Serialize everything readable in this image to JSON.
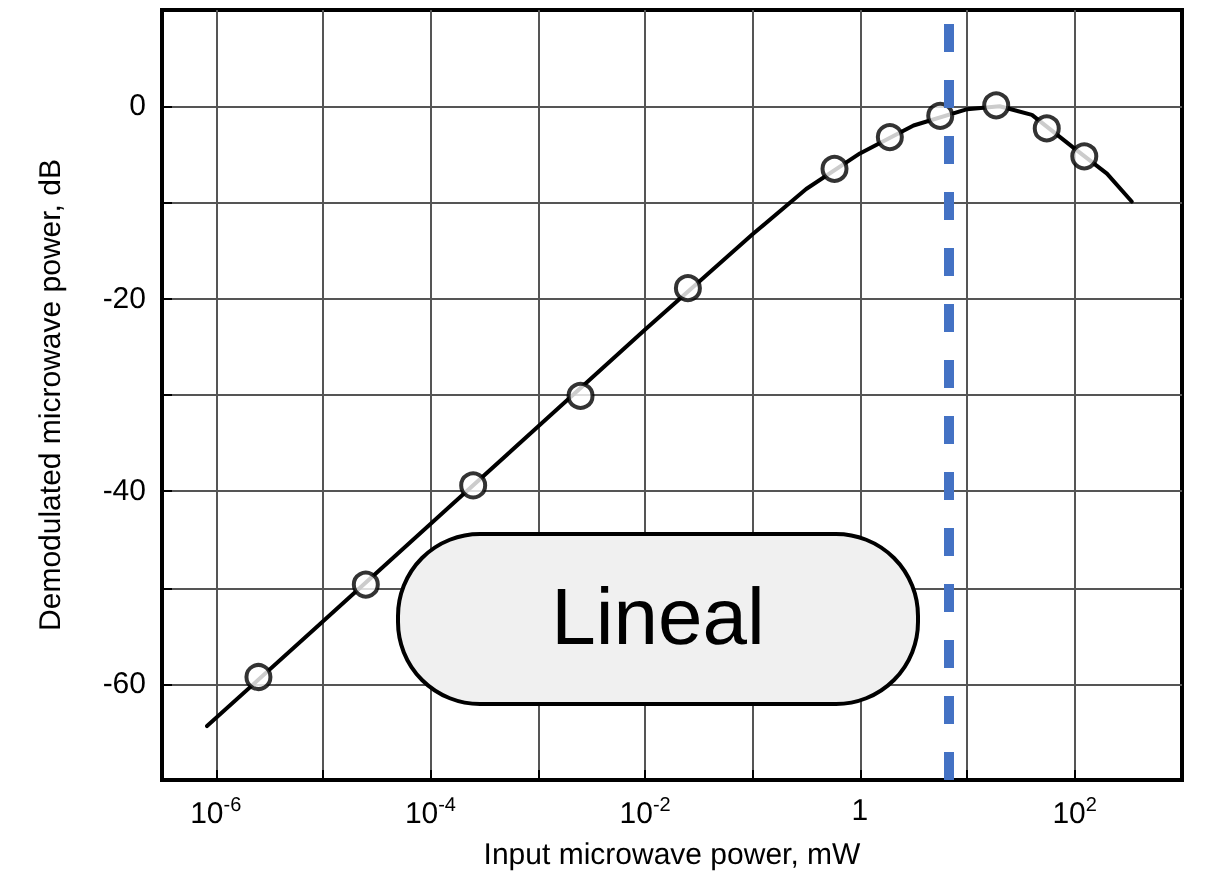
{
  "chart_data": {
    "type": "scatter",
    "xlabel": "Input microwave power, mW",
    "ylabel": "Demodulated microwave power, dB",
    "log": "x",
    "grid": true,
    "xlim": [
      3.16e-07,
      1000
    ],
    "ylim": [
      -70,
      10
    ],
    "xticks": [
      {
        "value": 1e-06,
        "label": "10$^{-6}$"
      },
      {
        "value": 1e-05,
        "label": null
      },
      {
        "value": 0.0001,
        "label": "10$^{-4}$"
      },
      {
        "value": 0.001,
        "label": null
      },
      {
        "value": 0.01,
        "label": "10$^{-2}$"
      },
      {
        "value": 0.1,
        "label": null
      },
      1,
      {
        "value": 10,
        "label": null
      },
      {
        "value": 100,
        "label": "10$^{2}$"
      }
    ],
    "yticks": [
      -60,
      {
        "value": -50,
        "label": null
      },
      -40,
      {
        "value": -30,
        "label": null
      },
      -20,
      {
        "value": -10,
        "label": null
      },
      0
    ],
    "series": [
      {
        "type": "line",
        "color": "#000000",
        "marker": "none",
        "line_style": "solid",
        "x": [
          8.3e-07,
          1e-05,
          0.0001,
          0.001,
          0.01,
          0.1,
          0.316,
          1,
          3.16,
          10,
          20,
          40,
          100,
          200,
          340
        ],
        "values": [
          -64.4,
          -53.5,
          -43.4,
          -33.3,
          -23.2,
          -13.3,
          -8.6,
          -4.9,
          -2.0,
          -0.3,
          0,
          -0.9,
          -4.4,
          -7.0,
          -9.9
        ]
      },
      {
        "color": "#000000",
        "marker": "circle",
        "x": [
          2.5e-06,
          2.5e-05,
          0.00025,
          0.0025,
          0.025,
          0.58,
          1.9,
          5.6,
          18.6,
          55,
          123
        ],
        "values": [
          -59.3,
          -49.7,
          -39.4,
          -30.1,
          -18.9,
          -6.5,
          -3.2,
          -1.0,
          0.1,
          -2.3,
          -5.2
        ]
      }
    ],
    "ref_lines": [
      {
        "axis": "x",
        "value": 6.6,
        "color": "#4472c4",
        "line_style": "dashed"
      }
    ],
    "annotations": [
      "Lineal"
    ]
  }
}
